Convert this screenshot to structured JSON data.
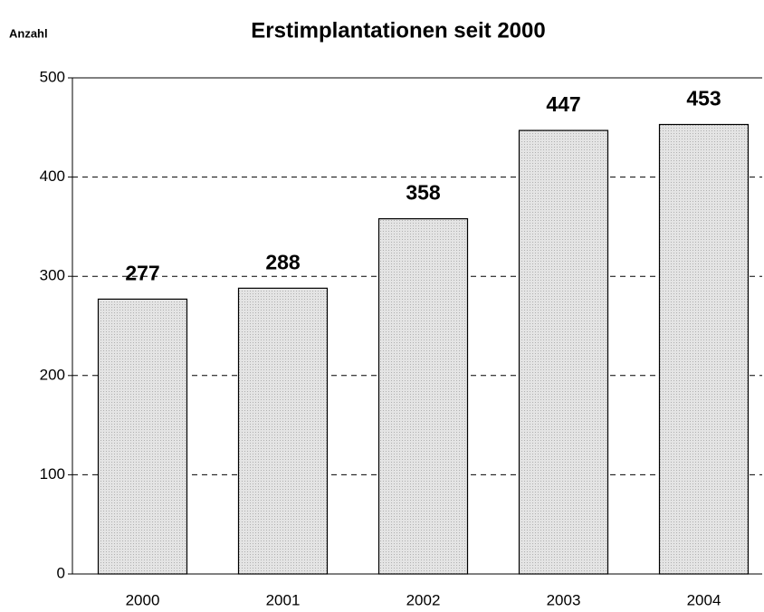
{
  "chart_data": {
    "type": "bar",
    "title": "Erstimplantationen seit 2000",
    "y_axis_label": "Anzahl",
    "categories": [
      "2000",
      "2001",
      "2002",
      "2003",
      "2004"
    ],
    "values": [
      277,
      288,
      358,
      447,
      453
    ],
    "color": "#d9d9d9",
    "ylim": [
      0,
      500
    ],
    "yticks": [
      0,
      100,
      200,
      300,
      400,
      500
    ],
    "grid": true
  }
}
